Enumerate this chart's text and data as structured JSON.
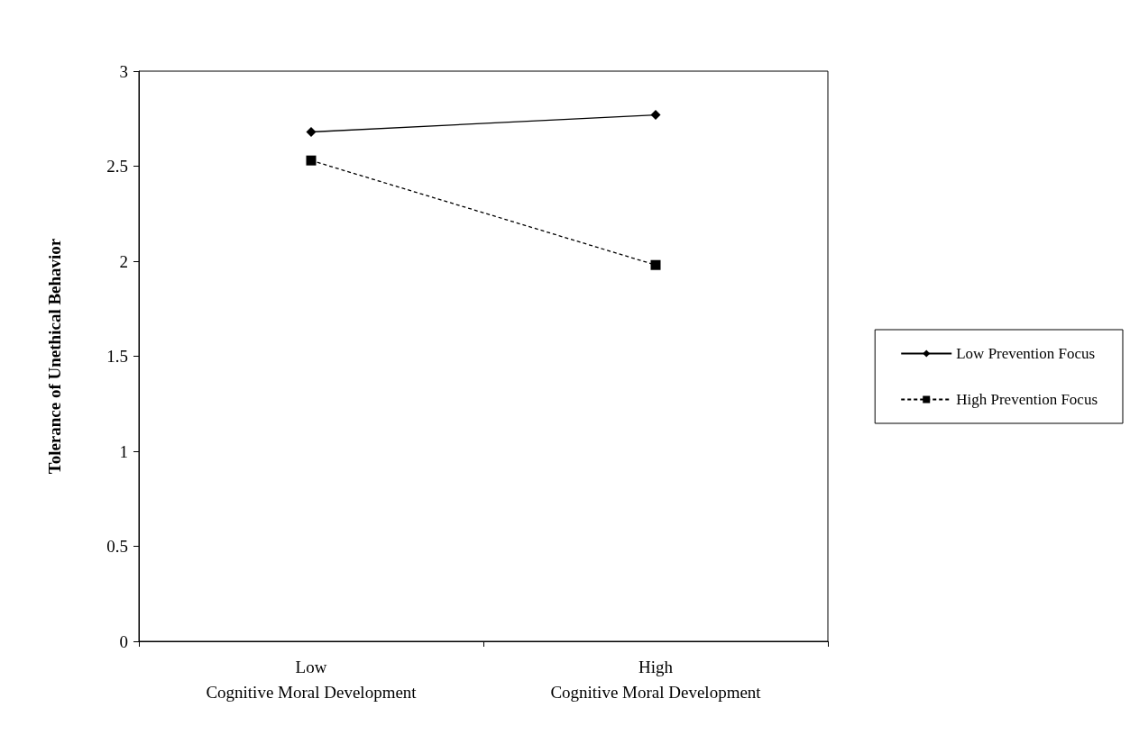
{
  "chart_data": {
    "type": "line",
    "ylabel": "Tolerance of Unethical Behavior",
    "categories": [
      "Low\nCognitive Moral Development",
      "High\nCognitive Moral Development"
    ],
    "series": [
      {
        "name": "Low Prevention Focus",
        "color": "#000000",
        "values": [
          2.68,
          2.77
        ],
        "marker": "diamond",
        "line_style": "solid"
      },
      {
        "name": "High Prevention Focus",
        "color": "#000000",
        "values": [
          2.53,
          1.98
        ],
        "marker": "square",
        "line_style": "dashed"
      }
    ],
    "ylim": [
      0,
      3
    ],
    "yticks": [
      0,
      0.5,
      1,
      1.5,
      2,
      2.5,
      3
    ],
    "grid": false,
    "legend": "right"
  }
}
